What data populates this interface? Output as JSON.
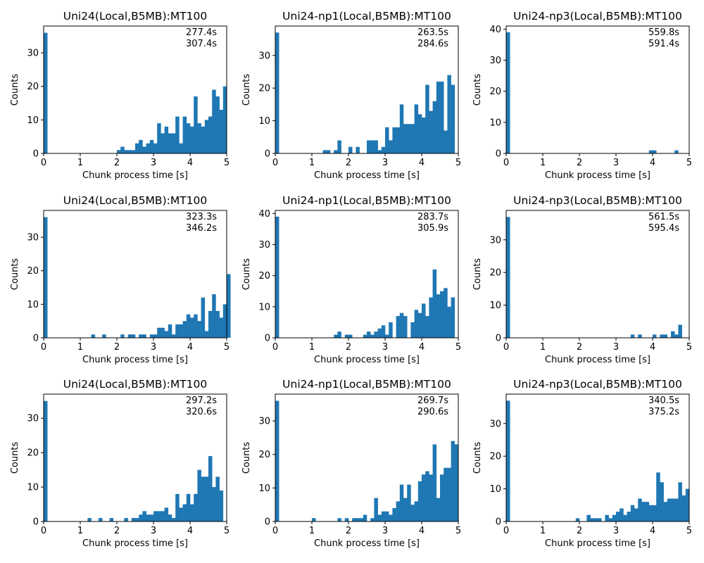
{
  "chart_data": [
    {
      "type": "bar",
      "title": "Uni24(Local,B5MB):MT100",
      "xlabel": "Chunk process time [s]",
      "ylabel": "Counts",
      "xlim": [
        0,
        5
      ],
      "ylim": [
        0,
        38
      ],
      "xticks": [
        "0",
        "1",
        "2",
        "3",
        "4",
        "5"
      ],
      "yticks": [
        0,
        10,
        20,
        30
      ],
      "annotations": [
        "277.4s",
        "307.4s"
      ],
      "bin_width": 0.1,
      "values": [
        36,
        0,
        0,
        0,
        0,
        0,
        0,
        0,
        0,
        0,
        0,
        0,
        0,
        0,
        0,
        0,
        0,
        0,
        0,
        0,
        1,
        2,
        1,
        1,
        1,
        3,
        4,
        2,
        3,
        4,
        3,
        9,
        6,
        8,
        6,
        6,
        11,
        3,
        11,
        9,
        8,
        17,
        9,
        8,
        10,
        11,
        19,
        17,
        13,
        20
      ]
    },
    {
      "type": "bar",
      "title": "Uni24-np1(Local,B5MB):MT100",
      "xlabel": "Chunk process time [s]",
      "ylabel": "Counts",
      "xlim": [
        0,
        5
      ],
      "ylim": [
        0,
        39
      ],
      "xticks": [
        "0",
        "1",
        "2",
        "3",
        "4",
        "5"
      ],
      "yticks": [
        0,
        10,
        20,
        30
      ],
      "annotations": [
        "263.5s",
        "284.6s"
      ],
      "bin_width": 0.1,
      "values": [
        37,
        0,
        0,
        0,
        0,
        0,
        0,
        0,
        0,
        0,
        0,
        0,
        0,
        1,
        1,
        0,
        1,
        4,
        0,
        0,
        2,
        0,
        2,
        0,
        0,
        4,
        4,
        4,
        1,
        2,
        8,
        4,
        8,
        8,
        15,
        9,
        9,
        9,
        15,
        12,
        11,
        21,
        13,
        16,
        22,
        22,
        7,
        24,
        21,
        0
      ]
    },
    {
      "type": "bar",
      "title": "Uni24-np3(Local,B5MB):MT100",
      "xlabel": "Chunk process time [s]",
      "ylabel": "Counts",
      "xlim": [
        0,
        5
      ],
      "ylim": [
        0,
        41
      ],
      "xticks": [
        "0",
        "1",
        "2",
        "3",
        "4",
        "5"
      ],
      "yticks": [
        0,
        10,
        20,
        30,
        40
      ],
      "annotations": [
        "559.8s",
        "591.4s"
      ],
      "bin_width": 0.1,
      "values": [
        39,
        0,
        0,
        0,
        0,
        0,
        0,
        0,
        0,
        0,
        0,
        0,
        0,
        0,
        0,
        0,
        0,
        0,
        0,
        0,
        0,
        0,
        0,
        0,
        0,
        0,
        0,
        0,
        0,
        0,
        0,
        0,
        0,
        0,
        0,
        0,
        0,
        0,
        0,
        1,
        1,
        0,
        0,
        0,
        0,
        0,
        1,
        0,
        0,
        0
      ]
    },
    {
      "type": "bar",
      "title": "Uni24(Local,B5MB):MT100",
      "xlabel": "Chunk process time [s]",
      "ylabel": "Counts",
      "xlim": [
        0,
        5
      ],
      "ylim": [
        0,
        38
      ],
      "xticks": [
        "0",
        "1",
        "2",
        "3",
        "4",
        "5"
      ],
      "yticks": [
        0,
        10,
        20,
        30
      ],
      "annotations": [
        "323.3s",
        "346.2s"
      ],
      "bin_width": 0.1,
      "values": [
        36,
        0,
        0,
        0,
        0,
        0,
        0,
        0,
        0,
        0,
        0,
        0,
        0,
        1,
        0,
        0,
        1,
        0,
        0,
        0,
        0,
        1,
        0,
        1,
        1,
        0,
        1,
        1,
        0,
        1,
        1,
        3,
        3,
        2,
        4,
        1,
        4,
        4,
        5,
        7,
        6,
        7,
        5,
        12,
        2,
        8,
        13,
        8,
        6,
        10,
        19
      ]
    },
    {
      "type": "bar",
      "title": "Uni24-np1(Local,B5MB):MT100",
      "xlabel": "Chunk process time [s]",
      "ylabel": "Counts",
      "xlim": [
        0,
        5
      ],
      "ylim": [
        0,
        41
      ],
      "xticks": [
        "0",
        "1",
        "2",
        "3",
        "4",
        "5"
      ],
      "yticks": [
        0,
        10,
        20,
        30,
        40
      ],
      "annotations": [
        "283.7s",
        "305.9s"
      ],
      "bin_width": 0.1,
      "values": [
        39,
        0,
        0,
        0,
        0,
        0,
        0,
        0,
        0,
        0,
        0,
        0,
        0,
        0,
        0,
        0,
        1,
        2,
        0,
        1,
        1,
        0,
        0,
        0,
        1,
        2,
        1,
        2,
        3,
        4,
        1,
        5,
        0,
        7,
        8,
        7,
        0,
        5,
        9,
        8,
        11,
        7,
        13,
        22,
        14,
        15,
        16,
        10,
        13,
        0
      ]
    },
    {
      "type": "bar",
      "title": "Uni24-np3(Local,B5MB):MT100",
      "xlabel": "Chunk process time [s]",
      "ylabel": "Counts",
      "xlim": [
        0,
        5
      ],
      "ylim": [
        0,
        39
      ],
      "xticks": [
        "0",
        "1",
        "2",
        "3",
        "4",
        "5"
      ],
      "yticks": [
        0,
        10,
        20,
        30
      ],
      "annotations": [
        "561.5s",
        "595.4s"
      ],
      "bin_width": 0.1,
      "values": [
        37,
        0,
        0,
        0,
        0,
        0,
        0,
        0,
        0,
        0,
        0,
        0,
        0,
        0,
        0,
        0,
        0,
        0,
        0,
        0,
        0,
        0,
        0,
        0,
        0,
        0,
        0,
        0,
        0,
        0,
        0,
        0,
        0,
        0,
        1,
        0,
        1,
        0,
        0,
        0,
        1,
        0,
        1,
        1,
        0,
        2,
        1,
        4,
        0,
        0
      ]
    },
    {
      "type": "bar",
      "title": "Uni24(Local,B5MB):MT100",
      "xlabel": "Chunk process time [s]",
      "ylabel": "Counts",
      "xlim": [
        0,
        5
      ],
      "ylim": [
        0,
        37
      ],
      "xticks": [
        "0",
        "1",
        "2",
        "3",
        "4",
        "5"
      ],
      "yticks": [
        0,
        10,
        20,
        30
      ],
      "annotations": [
        "297.2s",
        "320.6s"
      ],
      "bin_width": 0.1,
      "values": [
        35,
        0,
        0,
        0,
        0,
        0,
        0,
        0,
        0,
        0,
        0,
        0,
        1,
        0,
        0,
        1,
        0,
        0,
        1,
        0,
        0,
        0,
        1,
        0,
        1,
        1,
        2,
        3,
        2,
        2,
        3,
        3,
        3,
        4,
        2,
        1,
        8,
        4,
        5,
        8,
        5,
        8,
        15,
        13,
        13,
        19,
        10,
        13,
        9,
        0
      ]
    },
    {
      "type": "bar",
      "title": "Uni24-np1(Local,B5MB):MT100",
      "xlabel": "Chunk process time [s]",
      "ylabel": "Counts",
      "xlim": [
        0,
        5
      ],
      "ylim": [
        0,
        38
      ],
      "xticks": [
        "0",
        "1",
        "2",
        "3",
        "4",
        "5"
      ],
      "yticks": [
        0,
        10,
        20,
        30
      ],
      "annotations": [
        "269.7s",
        "290.6s"
      ],
      "bin_width": 0.1,
      "values": [
        36,
        0,
        0,
        0,
        0,
        0,
        0,
        0,
        0,
        0,
        1,
        0,
        0,
        0,
        0,
        0,
        0,
        1,
        0,
        1,
        0,
        1,
        1,
        1,
        2,
        0,
        1,
        7,
        2,
        3,
        3,
        2,
        4,
        6,
        11,
        7,
        11,
        5,
        6,
        12,
        14,
        15,
        14,
        23,
        7,
        14,
        16,
        16,
        24,
        23
      ]
    },
    {
      "type": "bar",
      "title": "Uni24-np3(Local,B5MB):MT100",
      "xlabel": "Chunk process time [s]",
      "ylabel": "Counts",
      "xlim": [
        0,
        5
      ],
      "ylim": [
        0,
        39
      ],
      "xticks": [
        "0",
        "1",
        "2",
        "3",
        "4",
        "5"
      ],
      "yticks": [
        0,
        10,
        20,
        30
      ],
      "annotations": [
        "340.5s",
        "375.2s"
      ],
      "bin_width": 0.1,
      "values": [
        37,
        0,
        0,
        0,
        0,
        0,
        0,
        0,
        0,
        0,
        0,
        0,
        0,
        0,
        0,
        0,
        0,
        0,
        0,
        1,
        0,
        0,
        2,
        1,
        1,
        1,
        0,
        2,
        1,
        2,
        3,
        4,
        2,
        3,
        5,
        4,
        7,
        6,
        6,
        5,
        5,
        15,
        12,
        6,
        7,
        7,
        7,
        12,
        8,
        10
      ]
    }
  ],
  "colors": {
    "bar": "#1f77b4",
    "axis": "#000000",
    "background": "#ffffff"
  }
}
